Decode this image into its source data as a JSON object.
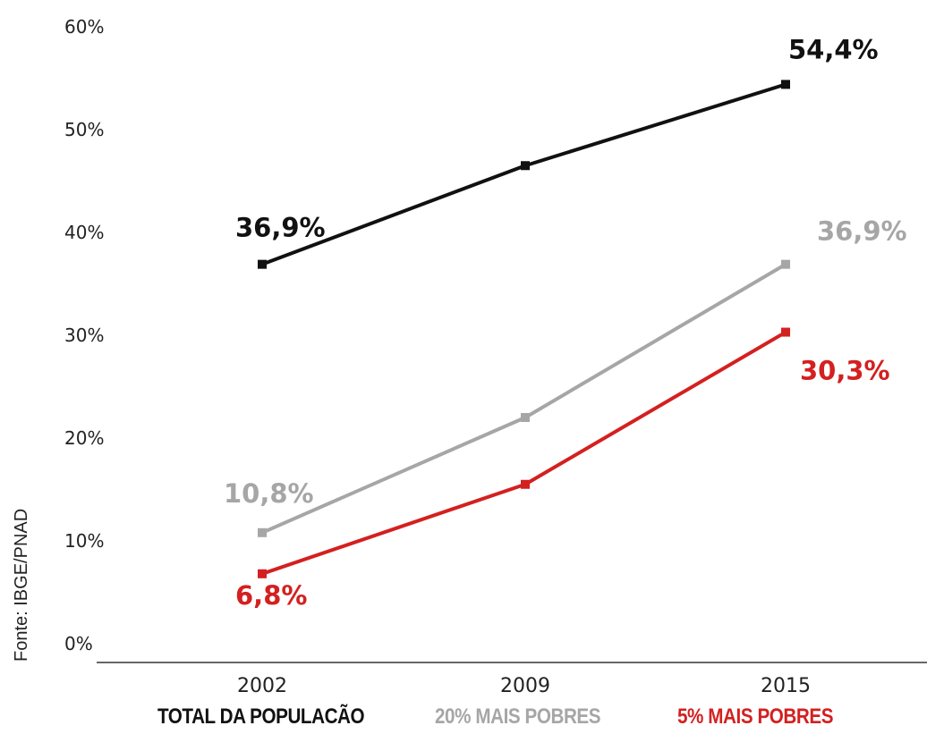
{
  "source": "Fonte: IBGE/PNAD",
  "legend": [
    {
      "label": "TOTAL DA POPULACÃO",
      "color": "#111111"
    },
    {
      "label": "20% MAIS POBRES",
      "color": "#a6a6a6"
    },
    {
      "label": "5% MAIS POBRES",
      "color": "#d42020"
    }
  ],
  "chart_data": {
    "type": "line",
    "x": [
      "2002",
      "2009",
      "2015"
    ],
    "yticks": [
      "0%",
      "10%",
      "20%",
      "30%",
      "40%",
      "50%",
      "60%"
    ],
    "ylim": [
      0,
      60
    ],
    "grid": false,
    "series": [
      {
        "name": "TOTAL DA POPULACÃO",
        "color": "#111111",
        "values": [
          36.9,
          46.5,
          54.4
        ],
        "labels": [
          "36,9%",
          "",
          "54,4%"
        ]
      },
      {
        "name": "20% MAIS POBRES",
        "color": "#a6a6a6",
        "values": [
          10.8,
          22.0,
          36.9
        ],
        "labels": [
          "10,8%",
          "",
          "36,9%"
        ]
      },
      {
        "name": "5% MAIS POBRES",
        "color": "#d42020",
        "values": [
          6.8,
          15.5,
          30.3
        ],
        "labels": [
          "6,8%",
          "",
          "30,3%"
        ]
      }
    ]
  }
}
